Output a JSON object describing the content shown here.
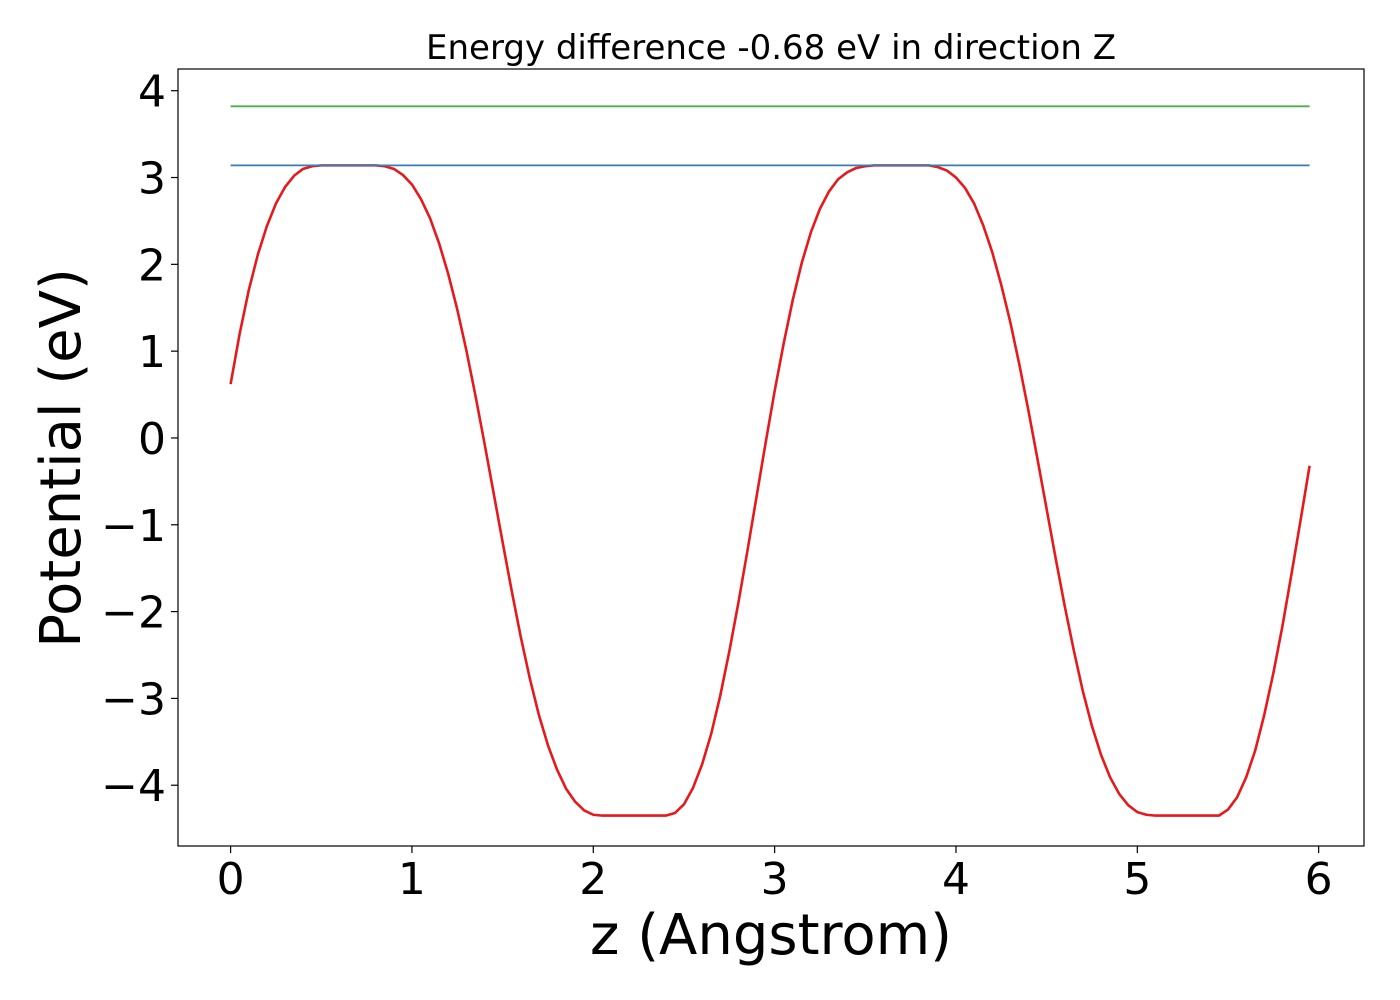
{
  "chart_data": {
    "type": "line",
    "title": "Energy difference -0.68 eV in direction Z",
    "xlabel": "z (Angstrom)",
    "ylabel": "Potential (eV)",
    "xlim": [
      -0.29,
      6.25
    ],
    "ylim": [
      -4.7,
      4.25
    ],
    "xticks": [
      0,
      1,
      2,
      3,
      4,
      5,
      6
    ],
    "xtick_labels": [
      "0",
      "1",
      "2",
      "3",
      "4",
      "5",
      "6"
    ],
    "yticks": [
      -4,
      -3,
      -2,
      -1,
      0,
      1,
      2,
      3,
      4
    ],
    "ytick_labels": [
      "−4",
      "−3",
      "−2",
      "−1",
      "0",
      "1",
      "2",
      "3",
      "4"
    ],
    "grid": false,
    "legend": "none",
    "series": [
      {
        "color": "#e41a1c",
        "x": [
          0.0,
          0.05,
          0.1,
          0.15,
          0.2,
          0.25,
          0.3,
          0.35,
          0.4,
          0.45,
          0.5,
          0.55,
          0.6,
          0.65,
          0.7,
          0.75,
          0.8,
          0.85,
          0.9,
          0.95,
          1.0,
          1.05,
          1.1,
          1.15,
          1.2,
          1.25,
          1.3,
          1.35,
          1.4,
          1.45,
          1.5,
          1.55,
          1.6,
          1.65,
          1.7,
          1.75,
          1.8,
          1.85,
          1.9,
          1.95,
          2.0,
          2.05,
          2.1,
          2.15,
          2.2,
          2.25,
          2.3,
          2.35,
          2.4,
          2.45,
          2.5,
          2.55,
          2.6,
          2.65,
          2.7,
          2.75,
          2.8,
          2.85,
          2.9,
          2.95,
          3.0,
          3.05,
          3.1,
          3.15,
          3.2,
          3.25,
          3.3,
          3.35,
          3.4,
          3.45,
          3.5,
          3.55,
          3.6,
          3.65,
          3.7,
          3.75,
          3.8,
          3.85,
          3.9,
          3.95,
          4.0,
          4.05,
          4.1,
          4.15,
          4.2,
          4.25,
          4.3,
          4.35,
          4.4,
          4.45,
          4.5,
          4.55,
          4.6,
          4.65,
          4.7,
          4.75,
          4.8,
          4.85,
          4.9,
          4.95,
          5.0,
          5.05,
          5.1,
          5.15,
          5.2,
          5.25,
          5.3,
          5.35,
          5.4,
          5.45,
          5.5,
          5.55,
          5.6,
          5.65,
          5.7,
          5.75,
          5.8,
          5.85,
          5.9,
          5.95
        ],
        "y": [
          0.62,
          1.2,
          1.7,
          2.11,
          2.44,
          2.7,
          2.89,
          3.02,
          3.1,
          3.13,
          3.14,
          3.14,
          3.14,
          3.14,
          3.14,
          3.14,
          3.14,
          3.13,
          3.1,
          3.03,
          2.92,
          2.75,
          2.53,
          2.24,
          1.89,
          1.48,
          1.01,
          0.49,
          -0.06,
          -0.63,
          -1.2,
          -1.76,
          -2.29,
          -2.77,
          -3.19,
          -3.54,
          -3.82,
          -4.04,
          -4.19,
          -4.29,
          -4.34,
          -4.35,
          -4.35,
          -4.35,
          -4.35,
          -4.35,
          -4.35,
          -4.35,
          -4.35,
          -4.32,
          -4.22,
          -4.03,
          -3.76,
          -3.41,
          -2.97,
          -2.46,
          -1.9,
          -1.3,
          -0.68,
          -0.06,
          0.54,
          1.09,
          1.59,
          2.02,
          2.37,
          2.64,
          2.84,
          2.98,
          3.06,
          3.11,
          3.13,
          3.14,
          3.14,
          3.14,
          3.14,
          3.14,
          3.14,
          3.14,
          3.12,
          3.08,
          3.0,
          2.88,
          2.7,
          2.45,
          2.14,
          1.76,
          1.33,
          0.84,
          0.31,
          -0.25,
          -0.82,
          -1.39,
          -1.94,
          -2.45,
          -2.92,
          -3.32,
          -3.65,
          -3.91,
          -4.1,
          -4.23,
          -4.31,
          -4.34,
          -4.35,
          -4.35,
          -4.35,
          -4.35,
          -4.35,
          -4.35,
          -4.35,
          -4.35,
          -4.28,
          -4.14,
          -3.91,
          -3.6,
          -3.19,
          -2.71,
          -2.17,
          -1.57,
          -0.95,
          -0.32
        ]
      },
      {
        "color": "#377eb8",
        "x": [
          0.0,
          5.95
        ],
        "y": [
          3.14,
          3.14
        ]
      },
      {
        "color": "#4daf4a",
        "x": [
          0.0,
          5.95
        ],
        "y": [
          3.82,
          3.82
        ]
      }
    ]
  }
}
